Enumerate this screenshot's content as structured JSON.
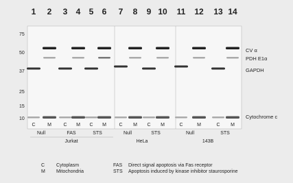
{
  "lane_numbers": [
    1,
    2,
    3,
    4,
    5,
    6,
    7,
    8,
    9,
    10,
    11,
    12,
    13,
    14
  ],
  "markers": [
    75,
    50,
    37,
    25,
    15,
    10
  ],
  "protein_labels": [
    "CV α",
    "PDH E1α",
    "GAPDH",
    "Cytochrome c"
  ],
  "lane_labels": [
    "C",
    "M",
    "C",
    "M",
    "C",
    "M",
    "C",
    "M",
    "C",
    "M",
    "C",
    "M",
    "C",
    "M"
  ],
  "treatments": [
    "Null",
    "FAS",
    "STS",
    "Null",
    "STS",
    "Null",
    "STS"
  ],
  "cell_lines": [
    "Jurkat",
    "HeLa",
    "143B"
  ],
  "legend": [
    {
      "abbr": "C",
      "text": "Cytoplasm"
    },
    {
      "abbr": "M",
      "text": "Mitochondria"
    },
    {
      "abbr": "FAS",
      "text": "Direct signal apoptosis via Fas receptor"
    },
    {
      "abbr": "STS",
      "text": "Apoptosis induced by kinase inhibitor staurosporine"
    }
  ]
}
